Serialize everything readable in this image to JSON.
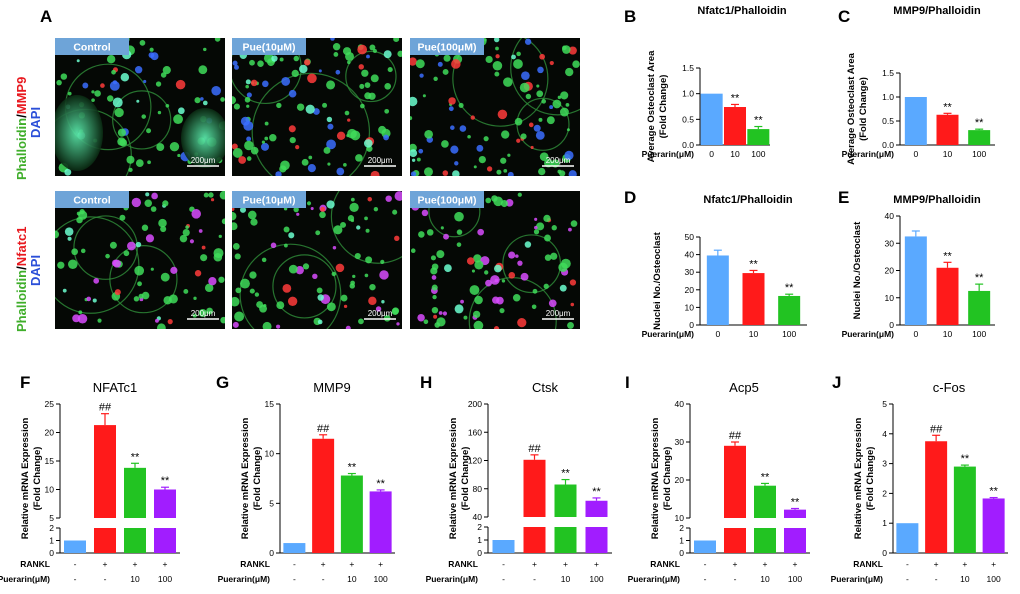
{
  "panel_a": {
    "letter": "A",
    "row_labels": [
      {
        "parts": [
          {
            "text": "Phalloidin",
            "color": "#3fae2a"
          },
          {
            "text": "/",
            "color": "#000000"
          },
          {
            "text": "MMP9",
            "color": "#e8191f"
          }
        ],
        "second": {
          "text": "DAPI",
          "color": "#2b4fd8"
        }
      },
      {
        "parts": [
          {
            "text": "Phalloidin",
            "color": "#3fae2a"
          },
          {
            "text": "/",
            "color": "#000000"
          },
          {
            "text": "Nfatc1",
            "color": "#e8191f"
          }
        ],
        "second": {
          "text": "DAPI",
          "color": "#2b4fd8"
        }
      }
    ],
    "image_labels": [
      "Control",
      "Pue(10μM)",
      "Pue(100μM)"
    ],
    "scale_bar": "200μm"
  },
  "colors": {
    "control": "#5aa9ff",
    "rankl": "#ff1a1a",
    "pue10": "#22c322",
    "pue100": "#a11dff",
    "label_box": "#6ea4d8"
  },
  "chart_data": [
    {
      "id": "B",
      "type": "bar",
      "title": "Nfatc1/Phalloidin",
      "ylabel": "Average Osteoclast Area (Fold Change)",
      "ylim": [
        0,
        1.5
      ],
      "yticks": [
        0.0,
        0.5,
        1.0,
        1.5
      ],
      "ytick_labels": [
        "0.0",
        "0.5",
        "1.0",
        "1.5"
      ],
      "row_label": "Puerarin(μM)",
      "categories": [
        "0",
        "10",
        "100"
      ],
      "values": [
        1.0,
        0.74,
        0.31
      ],
      "errors": [
        0,
        0.05,
        0.05
      ],
      "sig": [
        "",
        "**",
        "**"
      ],
      "bar_colors": [
        "control",
        "rankl",
        "pue10"
      ]
    },
    {
      "id": "C",
      "type": "bar",
      "title": "MMP9/Phalloidin",
      "ylabel": "Average Osteoclast Area (Fold Change)",
      "ylim": [
        0,
        1.5
      ],
      "yticks": [
        0.0,
        0.5,
        1.0,
        1.5
      ],
      "ytick_labels": [
        "0.0",
        "0.5",
        "1.0",
        "1.5"
      ],
      "row_label": "Puerarin(μM)",
      "categories": [
        "0",
        "10",
        "100"
      ],
      "values": [
        1.0,
        0.63,
        0.31
      ],
      "errors": [
        0,
        0.03,
        0.02
      ],
      "sig": [
        "",
        "**",
        "**"
      ],
      "bar_colors": [
        "control",
        "rankl",
        "pue10"
      ]
    },
    {
      "id": "D",
      "type": "bar",
      "title": "Nfatc1/Phalloidin",
      "ylabel": "Nuclei No./Osteoclast",
      "ylim": [
        0,
        50
      ],
      "yticks": [
        0,
        10,
        20,
        30,
        40,
        50
      ],
      "ytick_labels": [
        "0",
        "10",
        "20",
        "30",
        "40",
        "50"
      ],
      "row_label": "Puerarin(μM)",
      "categories": [
        "0",
        "10",
        "100"
      ],
      "values": [
        39.5,
        29.5,
        16.5
      ],
      "errors": [
        3.0,
        1.5,
        1.0
      ],
      "sig": [
        "",
        "**",
        "**"
      ],
      "bar_colors": [
        "control",
        "rankl",
        "pue10"
      ]
    },
    {
      "id": "E",
      "type": "bar",
      "title": "MMP9/Phalloidin",
      "ylabel": "Nuclei No./Osteoclast",
      "ylim": [
        0,
        40
      ],
      "yticks": [
        0,
        10,
        20,
        30,
        40
      ],
      "ytick_labels": [
        "0",
        "10",
        "20",
        "30",
        "40"
      ],
      "row_label": "Puerarin(μM)",
      "categories": [
        "0",
        "10",
        "100"
      ],
      "values": [
        32.5,
        21.0,
        12.5
      ],
      "errors": [
        2.0,
        2.0,
        2.5
      ],
      "sig": [
        "",
        "**",
        "**"
      ],
      "bar_colors": [
        "control",
        "rankl",
        "pue10"
      ]
    },
    {
      "id": "F",
      "type": "bar",
      "title": "NFATc1",
      "big": true,
      "ylabel": "Relative mRNA Expression (Fold Change)",
      "broken": true,
      "lower": {
        "ylim": [
          0,
          2
        ],
        "yticks": [
          0,
          1,
          2
        ]
      },
      "upper": {
        "ylim": [
          5,
          25
        ],
        "yticks": [
          5,
          10,
          15,
          20,
          25
        ]
      },
      "rows": [
        {
          "label": "RANKL",
          "values": [
            "-",
            "+",
            "+",
            "+"
          ]
        },
        {
          "label": "Puerarin(μM)",
          "values": [
            "-",
            "-",
            "10",
            "100"
          ]
        }
      ],
      "values": [
        1.0,
        21.3,
        13.8,
        10.0
      ],
      "errors": [
        0,
        2.0,
        0.8,
        0.4
      ],
      "sig": [
        "",
        "##",
        "**",
        "**"
      ],
      "bar_colors": [
        "control",
        "rankl",
        "pue10",
        "pue100"
      ]
    },
    {
      "id": "G",
      "type": "bar",
      "title": "MMP9",
      "big": true,
      "ylabel": "Relative mRNA Expression (Fold Change)",
      "broken": false,
      "ylim": [
        0,
        15
      ],
      "yticks": [
        0,
        5,
        10,
        15
      ],
      "rows": [
        {
          "label": "RANKL",
          "values": [
            "-",
            "+",
            "+",
            "+"
          ]
        },
        {
          "label": "Puerarin(μM)",
          "values": [
            "-",
            "-",
            "10",
            "100"
          ]
        }
      ],
      "values": [
        1.0,
        11.5,
        7.8,
        6.2
      ],
      "errors": [
        0,
        0.4,
        0.2,
        0.15
      ],
      "sig": [
        "",
        "##",
        "**",
        "**"
      ],
      "bar_colors": [
        "control",
        "rankl",
        "pue10",
        "pue100"
      ]
    },
    {
      "id": "H",
      "type": "bar",
      "title": "Ctsk",
      "big": true,
      "ylabel": "Relative mRNA Expression (Fold Change)",
      "broken": true,
      "lower": {
        "ylim": [
          0,
          2
        ],
        "yticks": [
          0,
          1,
          2
        ]
      },
      "upper": {
        "ylim": [
          40,
          200
        ],
        "yticks": [
          40,
          80,
          120,
          160,
          200
        ]
      },
      "rows": [
        {
          "label": "RANKL",
          "values": [
            "-",
            "+",
            "+",
            "+"
          ]
        },
        {
          "label": "Puerarin(μM)",
          "values": [
            "-",
            "-",
            "10",
            "100"
          ]
        }
      ],
      "values": [
        1.0,
        121,
        86,
        63
      ],
      "errors": [
        0,
        7,
        7,
        4
      ],
      "sig": [
        "",
        "##",
        "**",
        "**"
      ],
      "bar_colors": [
        "control",
        "rankl",
        "pue10",
        "pue100"
      ]
    },
    {
      "id": "I",
      "type": "bar",
      "title": "Acp5",
      "big": true,
      "ylabel": "Relative mRNA Expression (Fold Change)",
      "broken": true,
      "lower": {
        "ylim": [
          0,
          2
        ],
        "yticks": [
          0,
          1,
          2
        ]
      },
      "upper": {
        "ylim": [
          10,
          40
        ],
        "yticks": [
          10,
          20,
          30,
          40
        ]
      },
      "rows": [
        {
          "label": "RANKL",
          "values": [
            "-",
            "+",
            "+",
            "+"
          ]
        },
        {
          "label": "Puerarin(μM)",
          "values": [
            "-",
            "-",
            "10",
            "100"
          ]
        }
      ],
      "values": [
        1.0,
        29,
        18.5,
        12.2
      ],
      "errors": [
        0,
        1.0,
        0.6,
        0.3
      ],
      "sig": [
        "",
        "##",
        "**",
        "**"
      ],
      "bar_colors": [
        "control",
        "rankl",
        "pue10",
        "pue100"
      ]
    },
    {
      "id": "J",
      "type": "bar",
      "title": "c-Fos",
      "big": true,
      "ylabel": "Relative mRNA Expression (Fold Change)",
      "broken": false,
      "ylim": [
        0,
        5
      ],
      "yticks": [
        0,
        1,
        2,
        3,
        4,
        5
      ],
      "rows": [
        {
          "label": "RANKL",
          "values": [
            "-",
            "+",
            "+",
            "+"
          ]
        },
        {
          "label": "Puerarin(μM)",
          "values": [
            "-",
            "-",
            "10",
            "100"
          ]
        }
      ],
      "values": [
        1.0,
        3.75,
        2.9,
        1.83
      ],
      "errors": [
        0,
        0.2,
        0.05,
        0.03
      ],
      "sig": [
        "",
        "##",
        "**",
        "**"
      ],
      "bar_colors": [
        "control",
        "rankl",
        "pue10",
        "pue100"
      ]
    }
  ]
}
